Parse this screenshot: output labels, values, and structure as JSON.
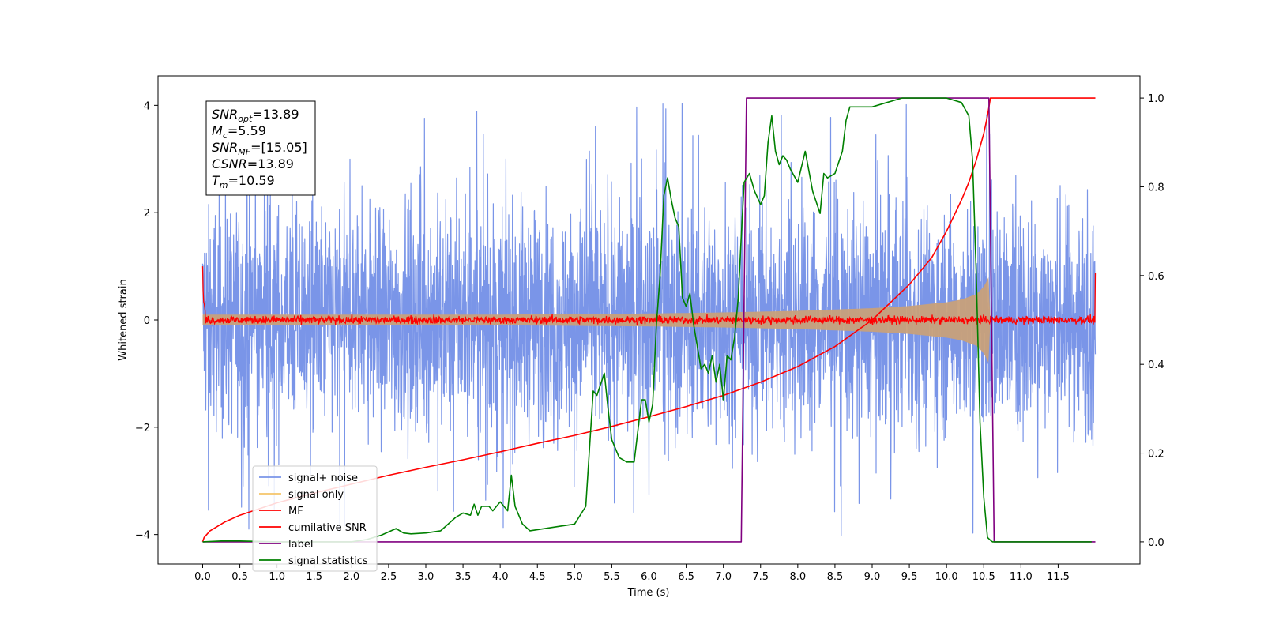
{
  "chart_data": {
    "type": "line",
    "xlabel": "Time (s)",
    "ylabel": "Whitened strain",
    "x_ticks": [
      "0.0",
      "0.5",
      "1.0",
      "1.5",
      "2.0",
      "2.5",
      "3.0",
      "3.5",
      "4.0",
      "4.5",
      "5.0",
      "5.5",
      "6.0",
      "6.5",
      "7.0",
      "7.5",
      "8.0",
      "8.5",
      "9.0",
      "9.5",
      "10.0",
      "10.5",
      "11.0",
      "11.5"
    ],
    "xlim": [
      -0.6,
      12.6
    ],
    "y_left": {
      "ticks": [
        "4",
        "2",
        "0",
        "−2",
        "−4"
      ],
      "tick_values": [
        4,
        2,
        0,
        -2,
        -4
      ],
      "lim": [
        -4.55,
        4.55
      ]
    },
    "y_right": {
      "ticks": [
        "1.0",
        "0.8",
        "0.6",
        "0.4",
        "0.2",
        "0.0"
      ],
      "tick_values": [
        1.0,
        0.8,
        0.6,
        0.4,
        0.2,
        0.0
      ],
      "lim": [
        -0.05,
        1.05
      ]
    },
    "grid": false,
    "info_box": {
      "lines": [
        {
          "main": "SNR",
          "sub": "opt",
          "rest": "=13.89"
        },
        {
          "main": "M",
          "sub": "c",
          "rest": "=5.59"
        },
        {
          "main": "SNR",
          "sub": "MF",
          "rest": "=[15.05]"
        },
        {
          "main": "CSNR",
          "sub": "",
          "rest": "=13.89"
        },
        {
          "main": "T",
          "sub": "m",
          "rest": "=10.59"
        }
      ]
    },
    "legend": {
      "position": "lower-left",
      "entries": [
        {
          "label": "signal+ noise",
          "color": "#7a95e8"
        },
        {
          "label": "signal only",
          "color": "#f5c46a"
        },
        {
          "label": "MF",
          "color": "#ff0000"
        },
        {
          "label": "cumilative SNR",
          "color": "#ff0000"
        },
        {
          "label": "label",
          "color": "#800080"
        },
        {
          "label": "signal statistics",
          "color": "#008000"
        }
      ]
    },
    "series": [
      {
        "name": "signal+ noise",
        "axis": "left",
        "color": "#7a95e8",
        "style": "noise-band",
        "x_range": [
          0,
          12.0
        ],
        "amplitude_typical": 2.2,
        "amplitude_max": 4.1
      },
      {
        "name": "signal only",
        "axis": "left",
        "color": "#c8a07a",
        "style": "envelope",
        "x": [
          0,
          2,
          4,
          6,
          7,
          8,
          9,
          9.5,
          10,
          10.2,
          10.4,
          10.5,
          10.55,
          10.58,
          10.59
        ],
        "amplitude": [
          0.1,
          0.1,
          0.1,
          0.12,
          0.14,
          0.17,
          0.22,
          0.26,
          0.33,
          0.38,
          0.48,
          0.62,
          0.75,
          0.85,
          0.0
        ]
      },
      {
        "name": "MF",
        "axis": "left",
        "color": "#ff0000",
        "style": "noise-thin",
        "x_range": [
          0,
          12.0
        ],
        "amplitude_typical": 0.12,
        "start_value": 1.0,
        "end_value": 0.88
      },
      {
        "name": "cumilative SNR",
        "axis": "right",
        "color": "#ff0000",
        "x": [
          0,
          0.02,
          0.1,
          0.3,
          0.5,
          1,
          1.5,
          2,
          2.5,
          3,
          3.5,
          4,
          4.5,
          5,
          5.5,
          6,
          6.5,
          7,
          7.5,
          8,
          8.5,
          9,
          9.5,
          9.8,
          10,
          10.2,
          10.3,
          10.4,
          10.5,
          10.55,
          10.59,
          10.65,
          11,
          11.5,
          12.0
        ],
        "y": [
          0.0,
          0.01,
          0.025,
          0.045,
          0.06,
          0.088,
          0.11,
          0.13,
          0.15,
          0.168,
          0.185,
          0.203,
          0.222,
          0.24,
          0.26,
          0.282,
          0.305,
          0.33,
          0.36,
          0.395,
          0.44,
          0.5,
          0.58,
          0.64,
          0.7,
          0.77,
          0.81,
          0.86,
          0.92,
          0.96,
          1.0,
          1.0,
          1.0,
          1.0,
          1.0
        ]
      },
      {
        "name": "label",
        "axis": "right",
        "color": "#800080",
        "x": [
          0,
          7.24,
          7.31,
          10.57,
          10.64,
          12.0
        ],
        "y": [
          0,
          0,
          1,
          1,
          0,
          0
        ]
      },
      {
        "name": "signal statistics",
        "axis": "right",
        "color": "#008000",
        "x": [
          0,
          0.25,
          0.5,
          1.0,
          1.5,
          2.0,
          2.2,
          2.4,
          2.6,
          2.7,
          2.8,
          3.0,
          3.2,
          3.4,
          3.5,
          3.6,
          3.65,
          3.7,
          3.75,
          3.85,
          3.9,
          4.0,
          4.1,
          4.15,
          4.2,
          4.3,
          4.4,
          4.6,
          4.8,
          5.0,
          5.15,
          5.25,
          5.3,
          5.4,
          5.45,
          5.5,
          5.6,
          5.7,
          5.8,
          5.9,
          5.95,
          6.0,
          6.05,
          6.1,
          6.15,
          6.2,
          6.25,
          6.3,
          6.35,
          6.4,
          6.45,
          6.5,
          6.55,
          6.6,
          6.65,
          6.7,
          6.75,
          6.8,
          6.85,
          6.9,
          6.95,
          7.0,
          7.05,
          7.1,
          7.15,
          7.2,
          7.25,
          7.28,
          7.35,
          7.42,
          7.5,
          7.55,
          7.6,
          7.65,
          7.7,
          7.75,
          7.8,
          7.85,
          7.9,
          8.0,
          8.1,
          8.2,
          8.3,
          8.35,
          8.4,
          8.5,
          8.6,
          8.65,
          8.7,
          8.8,
          9.0,
          9.2,
          9.4,
          9.6,
          9.8,
          10.0,
          10.2,
          10.3,
          10.35,
          10.4,
          10.45,
          10.5,
          10.55,
          10.6,
          10.62,
          10.65,
          10.7,
          11.0,
          11.5,
          11.95
        ],
        "y": [
          0.0,
          0.002,
          0.002,
          0.0,
          0.0,
          0.0,
          0.005,
          0.015,
          0.03,
          0.02,
          0.018,
          0.02,
          0.025,
          0.055,
          0.065,
          0.06,
          0.085,
          0.06,
          0.08,
          0.08,
          0.07,
          0.09,
          0.07,
          0.15,
          0.08,
          0.04,
          0.025,
          0.03,
          0.035,
          0.04,
          0.08,
          0.34,
          0.33,
          0.38,
          0.3,
          0.23,
          0.19,
          0.18,
          0.18,
          0.32,
          0.32,
          0.27,
          0.31,
          0.49,
          0.6,
          0.78,
          0.82,
          0.77,
          0.73,
          0.71,
          0.55,
          0.53,
          0.56,
          0.49,
          0.44,
          0.39,
          0.4,
          0.38,
          0.42,
          0.36,
          0.4,
          0.32,
          0.42,
          0.41,
          0.46,
          0.55,
          0.72,
          0.81,
          0.83,
          0.79,
          0.76,
          0.78,
          0.9,
          0.96,
          0.88,
          0.85,
          0.87,
          0.86,
          0.84,
          0.81,
          0.88,
          0.79,
          0.74,
          0.83,
          0.82,
          0.83,
          0.88,
          0.95,
          0.98,
          0.98,
          0.98,
          0.99,
          1.0,
          1.0,
          1.0,
          1.0,
          0.99,
          0.96,
          0.86,
          0.6,
          0.27,
          0.1,
          0.01,
          0.002,
          0.0,
          0.0,
          0.0,
          0.0,
          0.0,
          0.0
        ]
      }
    ]
  }
}
